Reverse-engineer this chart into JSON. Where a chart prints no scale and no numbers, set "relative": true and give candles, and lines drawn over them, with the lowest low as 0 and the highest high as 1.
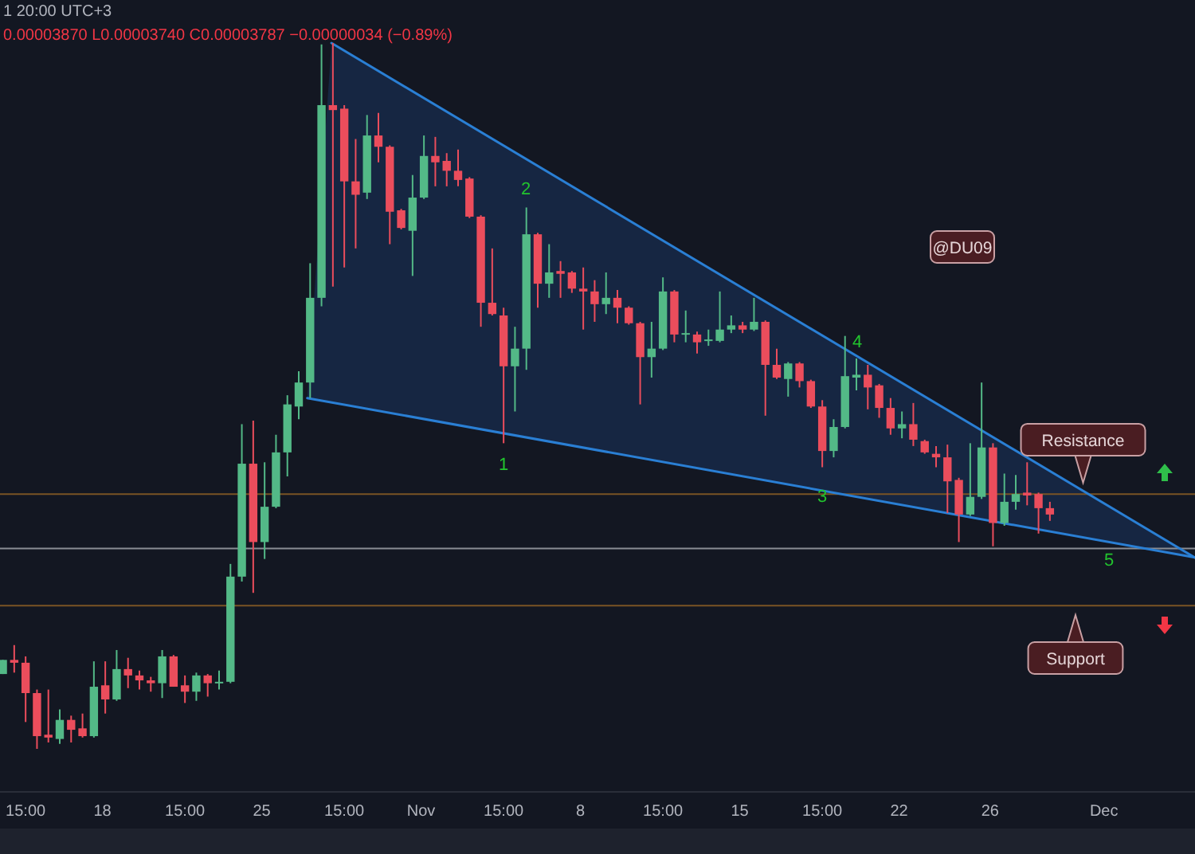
{
  "chart_data": {
    "type": "candlestick",
    "relative": true,
    "xlim": [
      "--10-13T12:00",
      "--12-05T00:00"
    ],
    "xticks": [
      {
        "value": "--10-14T15:00",
        "label": "15:00"
      },
      {
        "value": "--10-18",
        "label": "18"
      },
      {
        "value": "--10-21T15:00",
        "label": "15:00"
      },
      {
        "value": "--10-25",
        "label": "25"
      },
      {
        "value": "--10-28T15:00",
        "label": "15:00"
      },
      {
        "value": "--11-01",
        "label": "Nov"
      },
      {
        "value": "--11-04T15:00",
        "label": "15:00"
      },
      {
        "value": "--11-08",
        "label": "8"
      },
      {
        "value": "--11-11T15:00",
        "label": "15:00"
      },
      {
        "value": "--11-15",
        "label": "15"
      },
      {
        "value": "--11-18T15:00",
        "label": "15:00"
      },
      {
        "value": "--11-22",
        "label": "22"
      },
      {
        "value": "--11-26",
        "label": "26"
      },
      {
        "value": "--12-01",
        "label": "Dec"
      }
    ],
    "colors": [
      "#53b987",
      "#eb4d5c",
      "#eb4d5c",
      "#eb4d5c",
      "#eb4d5c",
      "#53b987",
      "#eb4d5c",
      "#eb4d5c",
      "#53b987",
      "#eb4d5c",
      "#53b987",
      "#eb4d5c",
      "#eb4d5c",
      "#eb4d5c",
      "#53b987",
      "#eb4d5c",
      "#eb4d5c",
      "#53b987",
      "#eb4d5c",
      "#53b987",
      "#53b987",
      "#53b987",
      "#eb4d5c",
      "#53b987",
      "#53b987",
      "#53b987",
      "#53b987",
      "#53b987",
      "#53b987",
      "#eb4d5c",
      "#eb4d5c",
      "#eb4d5c",
      "#53b987",
      "#eb4d5c",
      "#eb4d5c",
      "#eb4d5c",
      "#53b987",
      "#53b987",
      "#eb4d5c",
      "#eb4d5c",
      "#eb4d5c",
      "#eb4d5c",
      "#eb4d5c",
      "#eb4d5c",
      "#eb4d5c",
      "#53b987",
      "#53b987",
      "#eb4d5c",
      "#53b987",
      "#eb4d5c",
      "#eb4d5c",
      "#eb4d5c",
      "#eb4d5c",
      "#53b987",
      "#eb4d5c",
      "#eb4d5c",
      "#eb4d5c",
      "#53b987",
      "#53b987",
      "#eb4d5c",
      "#53b987",
      "#eb4d5c",
      "#53b987",
      "#53b987",
      "#53b987",
      "#eb4d5c",
      "#53b987",
      "#eb4d5c",
      "#eb4d5c",
      "#53b987",
      "#eb4d5c",
      "#eb4d5c",
      "#eb4d5c",
      "#53b987",
      "#53b987",
      "#53b987",
      "#eb4d5c",
      "#eb4d5c",
      "#eb4d5c",
      "#53b987",
      "#eb4d5c",
      "#eb4d5c",
      "#eb4d5c",
      "#eb4d5c",
      "#eb4d5c",
      "#53b987",
      "#53b987",
      "#eb4d5c",
      "#53b987",
      "#53b987",
      "#eb4d5c",
      "#eb4d5c",
      "#eb4d5c"
    ],
    "x": [
      "--10-13T15:00",
      "--10-14T03:00",
      "--10-14T15:00",
      "--10-15T03:00",
      "--10-15T15:00",
      "--10-16T03:00",
      "--10-16T15:00",
      "--10-17T03:00",
      "--10-17T15:00",
      "--10-18T03:00",
      "--10-18T15:00",
      "--10-19T03:00",
      "--10-19T15:00",
      "--10-20T03:00",
      "--10-20T15:00",
      "--10-21T03:00",
      "--10-21T15:00",
      "--10-22T03:00",
      "--10-22T15:00",
      "--10-23T03:00",
      "--10-23T15:00",
      "--10-24T03:00",
      "--10-24T15:00",
      "--10-25T03:00",
      "--10-25T15:00",
      "--10-26T03:00",
      "--10-26T15:00",
      "--10-27T03:00",
      "--10-27T15:00",
      "--10-28T03:00",
      "--10-28T15:00",
      "--10-29T03:00",
      "--10-29T15:00",
      "--10-30T03:00",
      "--10-30T15:00",
      "--10-31T03:00",
      "--10-31T15:00",
      "--11-01T03:00",
      "--11-01T15:00",
      "--11-02T03:00",
      "--11-02T15:00",
      "--11-03T03:00",
      "--11-03T15:00",
      "--11-04T03:00",
      "--11-04T15:00",
      "--11-05T03:00",
      "--11-05T15:00",
      "--11-06T03:00",
      "--11-06T15:00",
      "--11-07T03:00",
      "--11-07T15:00",
      "--11-08T03:00",
      "--11-08T15:00",
      "--11-09T03:00",
      "--11-09T15:00",
      "--11-10T03:00",
      "--11-10T15:00",
      "--11-11T03:00",
      "--11-11T15:00",
      "--11-12T03:00",
      "--11-12T15:00",
      "--11-13T03:00",
      "--11-13T15:00",
      "--11-14T03:00",
      "--11-14T15:00",
      "--11-15T03:00",
      "--11-15T15:00",
      "--11-16T03:00",
      "--11-16T15:00",
      "--11-17T03:00",
      "--11-17T15:00",
      "--11-18T03:00",
      "--11-18T15:00",
      "--11-19T03:00",
      "--11-19T15:00",
      "--11-20T03:00",
      "--11-20T15:00",
      "--11-21T03:00",
      "--11-21T15:00",
      "--11-22T03:00",
      "--11-22T15:00",
      "--11-23T03:00",
      "--11-23T15:00",
      "--11-24T03:00",
      "--11-24T15:00",
      "--11-25T03:00",
      "--11-25T15:00",
      "--11-26T03:00",
      "--11-26T15:00",
      "--11-27T03:00",
      "--11-27T15:00",
      "--11-28T03:00",
      "--11-28T15:00"
    ],
    "ohlc": [
      [
        0.106,
        0.126,
        0.106,
        0.126
      ],
      [
        0.126,
        0.147,
        0.108,
        0.122
      ],
      [
        0.122,
        0.131,
        0.038,
        0.079
      ],
      [
        0.079,
        0.084,
        0,
        0.018
      ],
      [
        0.02,
        0.084,
        0.009,
        0.016
      ],
      [
        0.014,
        0.056,
        0.007,
        0.041
      ],
      [
        0.041,
        0.047,
        0.009,
        0.027
      ],
      [
        0.029,
        0.05,
        0.016,
        0.018
      ],
      [
        0.018,
        0.124,
        0.016,
        0.088
      ],
      [
        0.09,
        0.124,
        0.05,
        0.07
      ],
      [
        0.07,
        0.14,
        0.068,
        0.113
      ],
      [
        0.113,
        0.129,
        0.086,
        0.104
      ],
      [
        0.104,
        0.111,
        0.084,
        0.097
      ],
      [
        0.097,
        0.102,
        0.081,
        0.093
      ],
      [
        0.093,
        0.14,
        0.072,
        0.131
      ],
      [
        0.131,
        0.133,
        0.088,
        0.088
      ],
      [
        0.09,
        0.104,
        0.065,
        0.081
      ],
      [
        0.081,
        0.108,
        0.068,
        0.104
      ],
      [
        0.104,
        0.106,
        0.074,
        0.093
      ],
      [
        0.094,
        0.111,
        0.084,
        0.095
      ],
      [
        0.095,
        0.262,
        0.093,
        0.244
      ],
      [
        0.244,
        0.46,
        0.237,
        0.404
      ],
      [
        0.404,
        0.465,
        0.221,
        0.293
      ],
      [
        0.293,
        0.406,
        0.269,
        0.343
      ],
      [
        0.343,
        0.445,
        0.341,
        0.42
      ],
      [
        0.42,
        0.501,
        0.386,
        0.488
      ],
      [
        0.485,
        0.535,
        0.467,
        0.519
      ],
      [
        0.519,
        0.688,
        0.497,
        0.639
      ],
      [
        0.639,
        0.998,
        0.627,
        0.912
      ],
      [
        0.912,
        1,
        0.655,
        0.905
      ],
      [
        0.907,
        0.912,
        0.682,
        0.804
      ],
      [
        0.804,
        0.864,
        0.709,
        0.785
      ],
      [
        0.788,
        0.898,
        0.779,
        0.869
      ],
      [
        0.869,
        0.901,
        0.831,
        0.853
      ],
      [
        0.853,
        0.855,
        0.715,
        0.761
      ],
      [
        0.763,
        0.765,
        0.736,
        0.738
      ],
      [
        0.734,
        0.813,
        0.67,
        0.781
      ],
      [
        0.781,
        0.869,
        0.779,
        0.84
      ],
      [
        0.84,
        0.867,
        0.797,
        0.831
      ],
      [
        0.833,
        0.844,
        0.797,
        0.819
      ],
      [
        0.819,
        0.849,
        0.797,
        0.806
      ],
      [
        0.808,
        0.81,
        0.752,
        0.754
      ],
      [
        0.754,
        0.756,
        0.598,
        0.632
      ],
      [
        0.632,
        0.709,
        0.614,
        0.616
      ],
      [
        0.614,
        0.625,
        0.433,
        0.542
      ],
      [
        0.542,
        0.598,
        0.478,
        0.567
      ],
      [
        0.567,
        0.767,
        0.537,
        0.729
      ],
      [
        0.729,
        0.731,
        0.625,
        0.659
      ],
      [
        0.659,
        0.715,
        0.639,
        0.675
      ],
      [
        0.677,
        0.691,
        0.639,
        0.673
      ],
      [
        0.675,
        0.677,
        0.646,
        0.652
      ],
      [
        0.652,
        0.682,
        0.594,
        0.648
      ],
      [
        0.648,
        0.664,
        0.605,
        0.63
      ],
      [
        0.63,
        0.675,
        0.616,
        0.639
      ],
      [
        0.639,
        0.65,
        0.603,
        0.625
      ],
      [
        0.625,
        0.627,
        0.601,
        0.603
      ],
      [
        0.603,
        0.605,
        0.488,
        0.555
      ],
      [
        0.555,
        0.605,
        0.526,
        0.567
      ],
      [
        0.567,
        0.668,
        0.565,
        0.648
      ],
      [
        0.648,
        0.65,
        0.576,
        0.587
      ],
      [
        0.588,
        0.621,
        0.576,
        0.589
      ],
      [
        0.587,
        0.591,
        0.56,
        0.576
      ],
      [
        0.578,
        0.594,
        0.571,
        0.58
      ],
      [
        0.578,
        0.648,
        0.576,
        0.594
      ],
      [
        0.594,
        0.614,
        0.589,
        0.6
      ],
      [
        0.6,
        0.605,
        0.589,
        0.594
      ],
      [
        0.594,
        0.639,
        0.592,
        0.605
      ],
      [
        0.605,
        0.607,
        0.472,
        0.544
      ],
      [
        0.544,
        0.567,
        0.524,
        0.526
      ],
      [
        0.524,
        0.548,
        0.499,
        0.546
      ],
      [
        0.546,
        0.548,
        0.512,
        0.521
      ],
      [
        0.521,
        0.523,
        0.483,
        0.485
      ],
      [
        0.485,
        0.494,
        0.399,
        0.422
      ],
      [
        0.422,
        0.467,
        0.413,
        0.456
      ],
      [
        0.456,
        0.585,
        0.454,
        0.528
      ],
      [
        0.526,
        0.553,
        0.508,
        0.53
      ],
      [
        0.53,
        0.544,
        0.481,
        0.512
      ],
      [
        0.515,
        0.517,
        0.469,
        0.483
      ],
      [
        0.483,
        0.497,
        0.445,
        0.454
      ],
      [
        0.454,
        0.478,
        0.44,
        0.46
      ],
      [
        0.46,
        0.49,
        0.429,
        0.438
      ],
      [
        0.436,
        0.438,
        0.418,
        0.42
      ],
      [
        0.418,
        0.429,
        0.399,
        0.413
      ],
      [
        0.413,
        0.431,
        0.334,
        0.379
      ],
      [
        0.381,
        0.384,
        0.293,
        0.332
      ],
      [
        0.332,
        0.433,
        0.33,
        0.357
      ],
      [
        0.357,
        0.519,
        0.354,
        0.427
      ],
      [
        0.427,
        0.433,
        0.287,
        0.32
      ],
      [
        0.32,
        0.39,
        0.316,
        0.35
      ],
      [
        0.35,
        0.388,
        0.339,
        0.361
      ],
      [
        0.363,
        0.406,
        0.345,
        0.359
      ],
      [
        0.361,
        0.363,
        0.305,
        0.341
      ],
      [
        0.341,
        0.35,
        0.323,
        0.332
      ]
    ],
    "series": [
      {
        "type": "line",
        "color": "#2a7fd4",
        "x": [
          "--10-28T01:30",
          "--12-05T00:00"
        ],
        "values": [
          1,
          0.271
        ]
      },
      {
        "type": "line",
        "color": "#2a7fd4",
        "x": [
          "--10-27T00:00",
          "--12-05T00:00"
        ],
        "values": [
          0.497,
          0.271
        ]
      }
    ],
    "ref_lines": [
      {
        "axis": "y",
        "value": 0.361,
        "color": "#7a5425"
      },
      {
        "axis": "y",
        "value": 0.284,
        "color": "#8a8d94"
      },
      {
        "axis": "y",
        "value": 0.203,
        "color": "#7a5425"
      }
    ],
    "annotations": [
      "1 20:00 UTC+3",
      "0.00003870 L0.00003740 C0.00003787 −0.00000034 (−0.89%)",
      "@DU09",
      "1",
      "2",
      "3",
      "4",
      "5",
      "Support",
      {
        "text": "Resistance",
        "x": "--11-30T02:00",
        "y": 0.377
      }
    ]
  }
}
